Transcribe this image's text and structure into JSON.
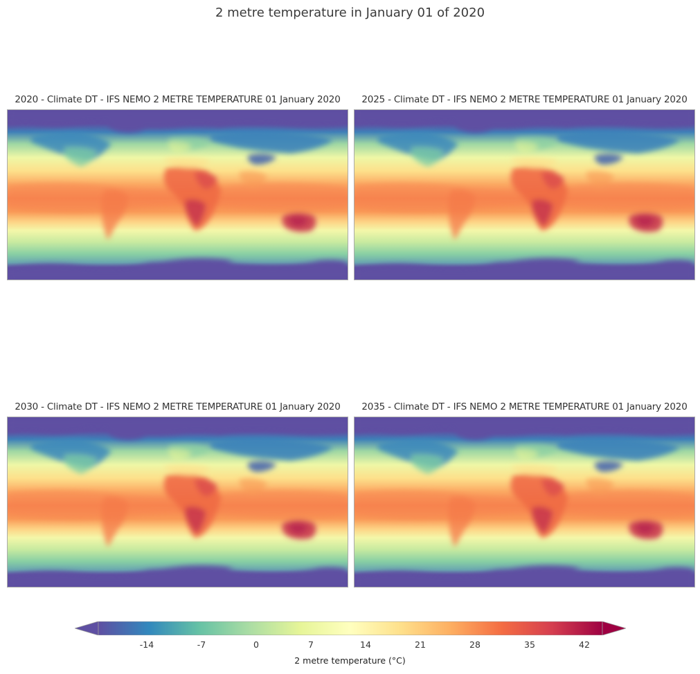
{
  "figure": {
    "title": "2 metre temperature in January 01 of 2020"
  },
  "panels": [
    {
      "title": "2020 - Climate DT - IFS NEMO 2 METRE TEMPERATURE 01 January 2020"
    },
    {
      "title": "2025 - Climate DT - IFS NEMO 2 METRE TEMPERATURE 01 January 2020"
    },
    {
      "title": "2030 - Climate DT - IFS NEMO 2 METRE TEMPERATURE 01 January 2020"
    },
    {
      "title": "2035 - Climate DT - IFS NEMO 2 METRE TEMPERATURE 01 January 2020"
    }
  ],
  "colorbar": {
    "label": "2 metre temperature (°C)",
    "ticks": [
      "-14",
      "-7",
      "0",
      "7",
      "14",
      "21",
      "28",
      "35",
      "42"
    ],
    "colormap": "Spectral_r",
    "colors": [
      "#5e4fa2",
      "#3288bd",
      "#66c2a5",
      "#abdda4",
      "#e6f598",
      "#ffffbf",
      "#fee08b",
      "#fdae61",
      "#f46d43",
      "#d53e4f",
      "#9e0142"
    ],
    "extend": "both"
  }
}
